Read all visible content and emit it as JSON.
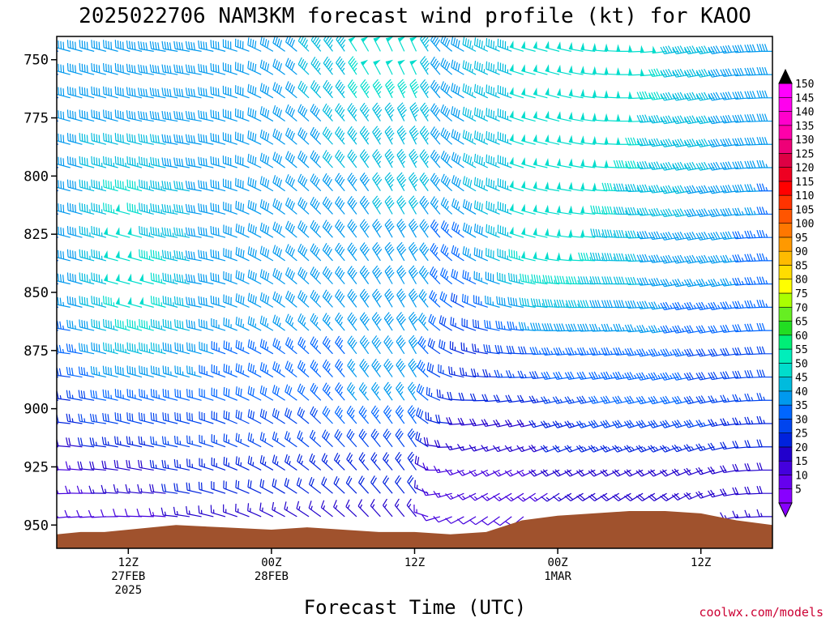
{
  "chart_data": {
    "type": "wind-barb-time-height",
    "title": "2025022706 NAM3KM forecast wind profile (kt) for KAOO",
    "xlabel": "Forecast Time (UTC)",
    "ylabel": "",
    "credit": "coolwx.com/models",
    "x_range_hours": [
      0,
      60
    ],
    "ylim": [
      960,
      740
    ],
    "y_ticks": [
      750,
      775,
      800,
      825,
      850,
      875,
      900,
      925,
      950
    ],
    "x_ticks": [
      {
        "hour": 6,
        "lines": [
          "12Z",
          "27FEB",
          "2025"
        ]
      },
      {
        "hour": 18,
        "lines": [
          "00Z",
          "28FEB"
        ]
      },
      {
        "hour": 30,
        "lines": [
          "12Z"
        ]
      },
      {
        "hour": 42,
        "lines": [
          "00Z",
          "1MAR"
        ]
      },
      {
        "hour": 54,
        "lines": [
          "12Z"
        ]
      }
    ],
    "colorbar": {
      "levels": [
        5,
        10,
        15,
        20,
        25,
        30,
        35,
        40,
        45,
        50,
        55,
        60,
        65,
        70,
        75,
        80,
        85,
        90,
        95,
        100,
        105,
        110,
        115,
        120,
        125,
        130,
        135,
        140,
        145,
        150
      ],
      "colors": [
        "#8800ff",
        "#6600ee",
        "#4400dd",
        "#2200cc",
        "#0022dd",
        "#0044ee",
        "#0066ff",
        "#0099ee",
        "#00bbdd",
        "#00ddcc",
        "#00eebb",
        "#00ee77",
        "#22dd22",
        "#66ee22",
        "#aaff00",
        "#ffff00",
        "#ffdd00",
        "#ffbb00",
        "#ff9900",
        "#ff7700",
        "#ff5500",
        "#ff3300",
        "#ff0000",
        "#ee0022",
        "#dd0044",
        "#ee0077",
        "#ff00aa",
        "#ff00cc",
        "#ff00ee",
        "#ff00ff"
      ]
    },
    "terrain": {
      "color": "#a0522d",
      "hours": [
        0,
        2,
        4,
        6,
        8,
        10,
        14,
        18,
        21,
        24,
        27,
        30,
        33,
        36,
        39,
        42,
        45,
        48,
        51,
        54,
        57,
        60
      ],
      "pressure": [
        954,
        953,
        953,
        952,
        951,
        950,
        951,
        952,
        951,
        952,
        953,
        953,
        954,
        953,
        948,
        946,
        945,
        944,
        944,
        945,
        948,
        950
      ]
    },
    "wind_profile": {
      "hours": [
        0,
        2,
        4,
        6,
        8,
        10,
        12,
        14,
        16,
        18,
        20,
        22,
        24,
        26,
        28,
        30,
        32,
        34,
        36,
        38,
        40,
        42,
        44,
        46,
        48,
        50,
        52,
        54,
        56,
        58,
        60
      ],
      "levels": [
        950,
        925,
        900,
        875,
        850,
        825,
        800,
        775,
        750
      ],
      "direction_deg": [
        [
          260,
          270,
          275,
          275,
          280,
          285,
          285,
          285,
          285
        ],
        [
          265,
          275,
          280,
          280,
          285,
          285,
          285,
          285,
          285
        ],
        [
          265,
          275,
          280,
          285,
          285,
          285,
          285,
          285,
          285
        ],
        [
          270,
          280,
          285,
          285,
          285,
          285,
          285,
          285,
          285
        ],
        [
          270,
          280,
          285,
          285,
          285,
          285,
          285,
          280,
          280
        ],
        [
          275,
          280,
          285,
          285,
          285,
          280,
          280,
          280,
          280
        ],
        [
          280,
          285,
          285,
          285,
          280,
          280,
          280,
          280,
          280
        ],
        [
          285,
          290,
          290,
          290,
          285,
          285,
          285,
          285,
          285
        ],
        [
          290,
          295,
          295,
          295,
          295,
          295,
          290,
          290,
          290
        ],
        [
          295,
          300,
          300,
          300,
          300,
          300,
          300,
          300,
          300
        ],
        [
          300,
          305,
          305,
          310,
          310,
          310,
          310,
          310,
          310
        ],
        [
          305,
          310,
          315,
          315,
          315,
          315,
          315,
          315,
          320
        ],
        [
          310,
          315,
          320,
          320,
          320,
          320,
          320,
          320,
          325
        ],
        [
          315,
          320,
          320,
          325,
          325,
          325,
          325,
          325,
          330
        ],
        [
          320,
          320,
          325,
          325,
          330,
          330,
          330,
          330,
          335
        ],
        [
          320,
          325,
          325,
          330,
          330,
          330,
          330,
          335,
          335
        ],
        [
          250,
          270,
          290,
          305,
          315,
          320,
          320,
          320,
          320
        ],
        [
          240,
          250,
          270,
          290,
          300,
          305,
          305,
          300,
          300
        ],
        [
          235,
          245,
          265,
          280,
          290,
          295,
          295,
          295,
          295
        ],
        [
          230,
          245,
          260,
          275,
          285,
          290,
          290,
          290,
          290
        ],
        [
          225,
          245,
          260,
          270,
          280,
          285,
          285,
          285,
          285
        ],
        [
          225,
          245,
          255,
          265,
          275,
          280,
          280,
          285,
          285
        ],
        [
          230,
          245,
          255,
          265,
          270,
          275,
          280,
          280,
          280
        ],
        [
          230,
          245,
          255,
          265,
          270,
          275,
          275,
          275,
          275
        ],
        [
          230,
          245,
          255,
          265,
          270,
          270,
          270,
          270,
          270
        ],
        [
          230,
          245,
          255,
          260,
          265,
          265,
          265,
          265,
          265
        ],
        [
          230,
          245,
          255,
          260,
          260,
          260,
          260,
          260,
          260
        ],
        [
          240,
          250,
          255,
          260,
          260,
          260,
          260,
          260,
          260
        ],
        [
          255,
          255,
          260,
          260,
          260,
          260,
          260,
          260,
          260
        ],
        [
          265,
          265,
          265,
          265,
          265,
          265,
          265,
          265,
          265
        ],
        [
          270,
          270,
          270,
          270,
          270,
          270,
          270,
          270,
          270
        ]
      ],
      "speed_kt": [
        [
          10,
          15,
          20,
          30,
          35,
          35,
          35,
          35,
          35
        ],
        [
          10,
          15,
          25,
          35,
          40,
          40,
          40,
          40,
          40
        ],
        [
          10,
          20,
          30,
          40,
          45,
          45,
          45,
          40,
          40
        ],
        [
          10,
          20,
          30,
          45,
          50,
          50,
          45,
          40,
          40
        ],
        [
          10,
          20,
          30,
          45,
          50,
          45,
          45,
          40,
          40
        ],
        [
          15,
          25,
          30,
          40,
          45,
          45,
          40,
          40,
          40
        ],
        [
          15,
          25,
          30,
          40,
          40,
          40,
          40,
          40,
          40
        ],
        [
          15,
          25,
          30,
          35,
          40,
          40,
          40,
          40,
          40
        ],
        [
          15,
          25,
          30,
          35,
          40,
          40,
          40,
          40,
          40
        ],
        [
          15,
          25,
          30,
          35,
          40,
          40,
          40,
          40,
          40
        ],
        [
          15,
          25,
          30,
          35,
          40,
          40,
          40,
          40,
          40
        ],
        [
          15,
          25,
          30,
          35,
          40,
          40,
          40,
          40,
          45
        ],
        [
          15,
          25,
          35,
          35,
          40,
          40,
          40,
          45,
          45
        ],
        [
          15,
          25,
          35,
          40,
          40,
          40,
          40,
          45,
          50
        ],
        [
          15,
          25,
          35,
          40,
          40,
          40,
          45,
          45,
          50
        ],
        [
          15,
          25,
          35,
          40,
          40,
          40,
          45,
          45,
          50
        ],
        [
          10,
          15,
          25,
          30,
          35,
          35,
          40,
          40,
          40
        ],
        [
          10,
          15,
          20,
          25,
          30,
          35,
          40,
          40,
          40
        ],
        [
          10,
          15,
          20,
          25,
          35,
          40,
          45,
          45,
          45
        ],
        [
          10,
          15,
          20,
          30,
          40,
          45,
          45,
          45,
          45
        ],
        [
          10,
          15,
          20,
          30,
          45,
          50,
          50,
          50,
          50
        ],
        [
          10,
          20,
          25,
          35,
          45,
          50,
          50,
          50,
          50
        ],
        [
          15,
          20,
          25,
          35,
          45,
          50,
          50,
          50,
          50
        ],
        [
          15,
          20,
          30,
          35,
          40,
          45,
          50,
          50,
          50
        ],
        [
          15,
          20,
          30,
          35,
          40,
          45,
          45,
          50,
          50
        ],
        [
          15,
          20,
          30,
          35,
          40,
          40,
          45,
          45,
          50
        ],
        [
          15,
          20,
          30,
          35,
          35,
          40,
          45,
          45,
          45
        ],
        [
          15,
          20,
          30,
          30,
          35,
          40,
          40,
          45,
          45
        ],
        [
          15,
          20,
          25,
          30,
          35,
          40,
          40,
          40,
          40
        ],
        [
          15,
          20,
          25,
          30,
          35,
          35,
          40,
          40,
          40
        ],
        [
          15,
          20,
          25,
          30,
          35,
          35,
          35,
          40,
          40
        ]
      ]
    }
  }
}
